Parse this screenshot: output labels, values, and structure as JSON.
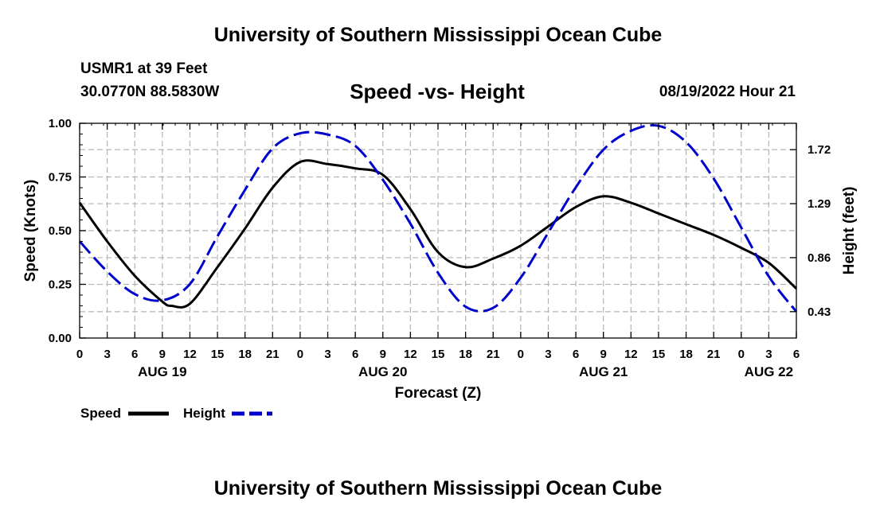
{
  "page": {
    "title_top": "University of Southern Mississippi Ocean Cube",
    "title_bottom": "University of Southern Mississippi Ocean Cube",
    "station_line": "USMR1 at 39 Feet",
    "coords_line": "30.0770N  88.5830W",
    "timestamp": "08/19/2022 Hour 21"
  },
  "chart_data": {
    "type": "line",
    "title": "Speed -vs- Height",
    "xlabel": "Forecast (Z)",
    "ylabel": "Speed (Knots)",
    "y2label": "Height (feet)",
    "xlim": [
      0,
      78
    ],
    "ylim": [
      0,
      1
    ],
    "y2lim": [
      0.22,
      1.93
    ],
    "grid": true,
    "legend_position": "bottom-left",
    "x_tick_labels": [
      "0",
      "3",
      "6",
      "9",
      "12",
      "15",
      "18",
      "21",
      "0",
      "3",
      "6",
      "9",
      "12",
      "15",
      "18",
      "21",
      "0",
      "3",
      "6",
      "9",
      "12",
      "15",
      "18",
      "21",
      "0",
      "3",
      "6"
    ],
    "y_tick_labels": [
      "0.00",
      "0.25",
      "0.50",
      "0.75",
      "1.00"
    ],
    "y2_ticks": [
      0.43,
      0.86,
      1.29,
      1.72
    ],
    "y2_tick_labels": [
      "0.43",
      "0.86",
      "1.29",
      "1.72"
    ],
    "day_labels": [
      {
        "x": 9,
        "label": "AUG 19"
      },
      {
        "x": 33,
        "label": "AUG 20"
      },
      {
        "x": 57,
        "label": "AUG 21"
      },
      {
        "x": 75,
        "label": "AUG 22"
      }
    ],
    "series": [
      {
        "name": "Speed",
        "color": "#000000",
        "axis": "left",
        "dash": "solid",
        "x": [
          0,
          3,
          6,
          9,
          10,
          12,
          15,
          18,
          21,
          24,
          27,
          30,
          33,
          36,
          39,
          42,
          45,
          48,
          51,
          54,
          57,
          60,
          63,
          66,
          69,
          72,
          75,
          78
        ],
        "values": [
          0.63,
          0.45,
          0.29,
          0.17,
          0.15,
          0.16,
          0.33,
          0.51,
          0.7,
          0.82,
          0.81,
          0.79,
          0.76,
          0.6,
          0.4,
          0.33,
          0.37,
          0.43,
          0.52,
          0.61,
          0.66,
          0.63,
          0.58,
          0.53,
          0.48,
          0.42,
          0.35,
          0.23
        ]
      },
      {
        "name": "Height",
        "color": "#0000cc",
        "axis": "right",
        "dash": "dashed",
        "x": [
          0,
          3,
          6,
          9,
          12,
          15,
          18,
          21,
          24,
          27,
          30,
          33,
          36,
          39,
          42,
          45,
          48,
          51,
          54,
          57,
          60,
          63,
          66,
          69,
          72,
          75,
          78
        ],
        "values": [
          0.99,
          0.75,
          0.57,
          0.52,
          0.65,
          1.03,
          1.4,
          1.73,
          1.85,
          1.84,
          1.75,
          1.48,
          1.13,
          0.74,
          0.47,
          0.46,
          0.7,
          1.06,
          1.42,
          1.72,
          1.87,
          1.91,
          1.78,
          1.49,
          1.1,
          0.71,
          0.43
        ]
      }
    ]
  }
}
